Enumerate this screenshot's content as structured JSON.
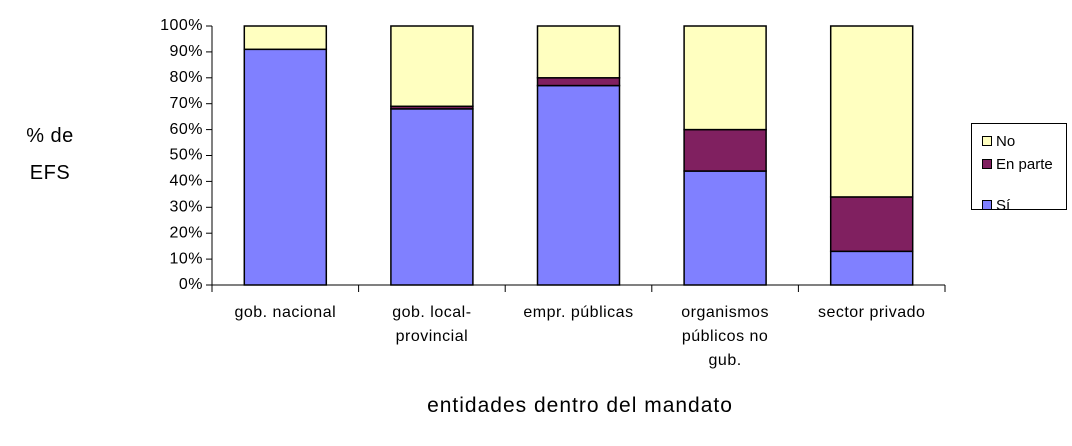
{
  "chart_data": {
    "type": "stacked_bar_percent",
    "categories": [
      "gob. nacional",
      "gob. local-provincial",
      "empr. públicas",
      "organismos públicos no gub.",
      "sector privado"
    ],
    "series": [
      {
        "name": "Sí",
        "color": "#8080ff",
        "values": [
          91,
          68,
          77,
          44,
          13
        ]
      },
      {
        "name": "En parte",
        "color": "#802060",
        "values": [
          0,
          1,
          3,
          16,
          21
        ]
      },
      {
        "name": "No",
        "color": "#ffffc0",
        "values": [
          9,
          31,
          20,
          40,
          66
        ]
      }
    ],
    "ylim": [
      0,
      100
    ],
    "yticks": [
      {
        "value": 0,
        "label": "0%"
      },
      {
        "value": 10,
        "label": "10%"
      },
      {
        "value": 20,
        "label": "20%"
      },
      {
        "value": 30,
        "label": "30%"
      },
      {
        "value": 40,
        "label": "40%"
      },
      {
        "value": 50,
        "label": "50%"
      },
      {
        "value": 60,
        "label": "60%"
      },
      {
        "value": 70,
        "label": "70%"
      },
      {
        "value": 80,
        "label": "80%"
      },
      {
        "value": 90,
        "label": "90%"
      },
      {
        "value": 100,
        "label": "100%"
      }
    ],
    "y_label": "% de EFS",
    "x_label": "entidades dentro del mandato",
    "legend": "right"
  }
}
